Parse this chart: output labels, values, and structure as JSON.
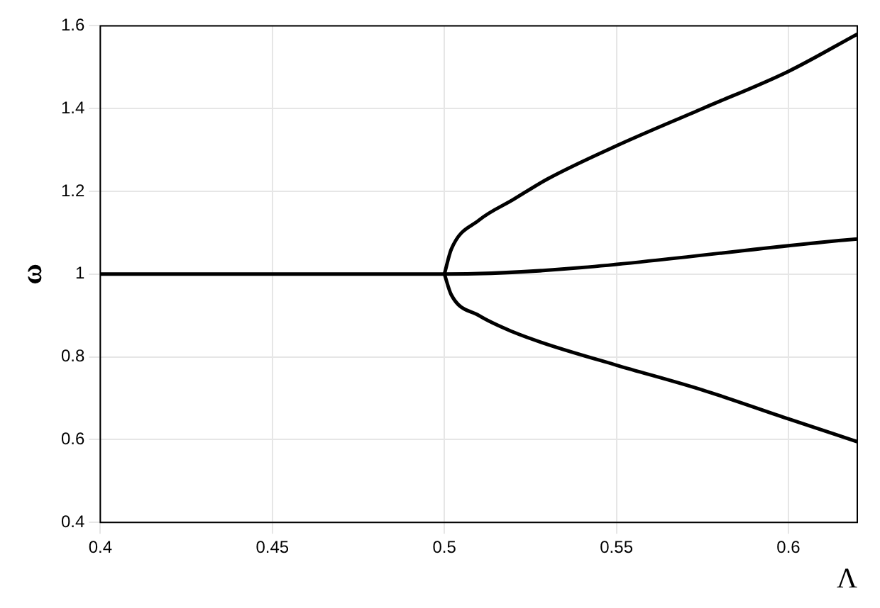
{
  "chart_data": {
    "type": "line",
    "xlabel": "Λ",
    "ylabel": "ω",
    "xlim": [
      0.4,
      0.62
    ],
    "ylim": [
      0.4,
      1.6
    ],
    "xticks": [
      0.4,
      0.45,
      0.5,
      0.55,
      0.6
    ],
    "yticks": [
      0.4,
      0.6,
      0.8,
      1,
      1.2,
      1.4,
      1.6
    ],
    "grid": true,
    "legend": false,
    "marker": "none",
    "line_style": "solid",
    "series": [
      {
        "color": "#000000",
        "x": [
          0.4,
          0.5,
          0.62
        ],
        "values": [
          1,
          1,
          1.085
        ]
      },
      {
        "color": "#000000",
        "x": [
          0.5,
          0.502,
          0.51,
          0.52,
          0.53,
          0.55,
          0.575,
          0.6,
          0.62
        ],
        "values": [
          1,
          1.06,
          1.13,
          1.18,
          1.23,
          1.31,
          1.4,
          1.49,
          1.58
        ]
      },
      {
        "color": "#000000",
        "x": [
          0.5,
          0.502,
          0.51,
          0.52,
          0.53,
          0.55,
          0.575,
          0.6,
          0.62
        ],
        "values": [
          1,
          0.95,
          0.9,
          0.86,
          0.83,
          0.78,
          0.72,
          0.65,
          0.595
        ]
      }
    ]
  }
}
